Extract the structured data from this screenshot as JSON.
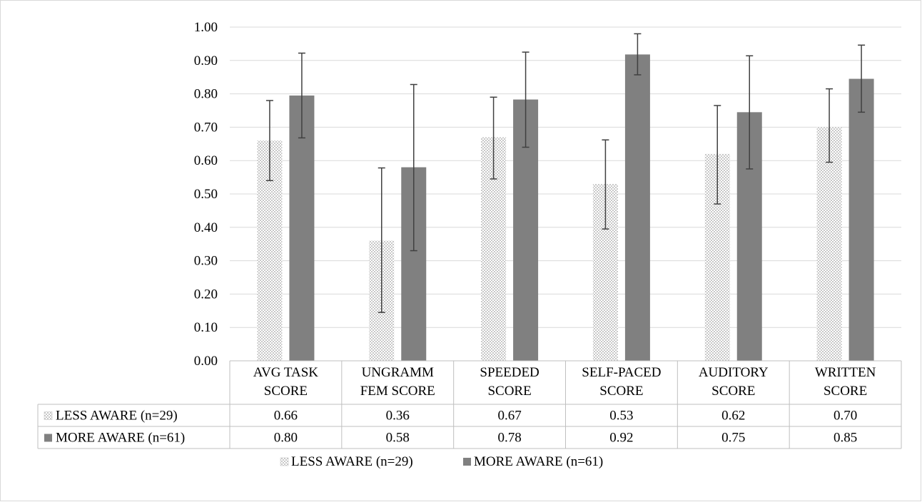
{
  "chart_data": {
    "type": "bar",
    "categories": [
      [
        "AVG TASK",
        "SCORE"
      ],
      [
        "UNGRAMM",
        "FEM SCORE"
      ],
      [
        "SPEEDED",
        "SCORE"
      ],
      [
        "SELF-PACED",
        "SCORE"
      ],
      [
        "AUDITORY",
        "SCORE"
      ],
      [
        "WRITTEN",
        "SCORE"
      ]
    ],
    "series": [
      {
        "name": "LESS AWARE (n=29)",
        "values": [
          0.66,
          0.36,
          0.67,
          0.53,
          0.62,
          0.7
        ],
        "table_labels": [
          "0.66",
          "0.36",
          "0.67",
          "0.53",
          "0.62",
          "0.70"
        ],
        "error_low": [
          0.54,
          0.145,
          0.545,
          0.395,
          0.47,
          0.595
        ],
        "error_high": [
          0.78,
          0.578,
          0.79,
          0.662,
          0.765,
          0.815
        ],
        "color": "#d4d4d4",
        "pattern": "dotted"
      },
      {
        "name": "MORE AWARE (n=61)",
        "values": [
          0.795,
          0.58,
          0.783,
          0.918,
          0.745,
          0.845
        ],
        "table_labels": [
          "0.80",
          "0.58",
          "0.78",
          "0.92",
          "0.75",
          "0.85"
        ],
        "error_low": [
          0.668,
          0.33,
          0.64,
          0.857,
          0.575,
          0.745
        ],
        "error_high": [
          0.922,
          0.828,
          0.925,
          0.98,
          0.914,
          0.946
        ],
        "color": "#808080",
        "pattern": "solid"
      }
    ],
    "ylim": [
      0,
      1
    ],
    "yticks": [
      "0.00",
      "0.10",
      "0.20",
      "0.30",
      "0.40",
      "0.50",
      "0.60",
      "0.70",
      "0.80",
      "0.90",
      "1.00"
    ],
    "grid": true,
    "data_table": true,
    "legend_position": "bottom",
    "colors": {
      "gridline": "#d9d9d9",
      "error_bar": "#404040",
      "table_border": "#bfbfbf"
    }
  }
}
